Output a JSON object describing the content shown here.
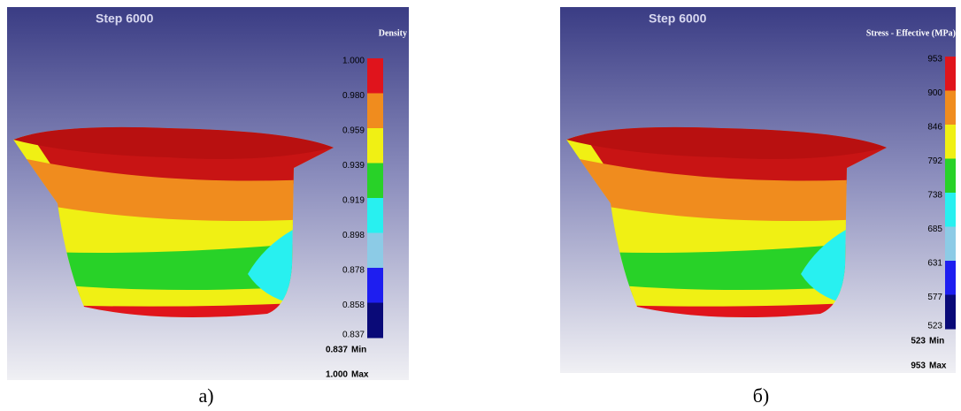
{
  "panels": [
    {
      "step": "Step 6000",
      "legend_title": "Density",
      "legend_ticks": [
        "1.000",
        "0.980",
        "0.959",
        "0.939",
        "0.919",
        "0.898",
        "0.878",
        "0.858",
        "0.837"
      ],
      "min": {
        "value": "0.837",
        "label": "Min"
      },
      "max": {
        "value": "1.000",
        "label": "Max"
      },
      "caption": "а)"
    },
    {
      "step": "Step 6000",
      "legend_title": "Stress - Effective (MPa)",
      "legend_ticks": [
        "953",
        "900",
        "846",
        "792",
        "738",
        "685",
        "631",
        "577",
        "523"
      ],
      "min": {
        "value": "523",
        "label": "Min"
      },
      "max": {
        "value": "953",
        "label": "Max"
      },
      "caption": "б)"
    }
  ]
}
